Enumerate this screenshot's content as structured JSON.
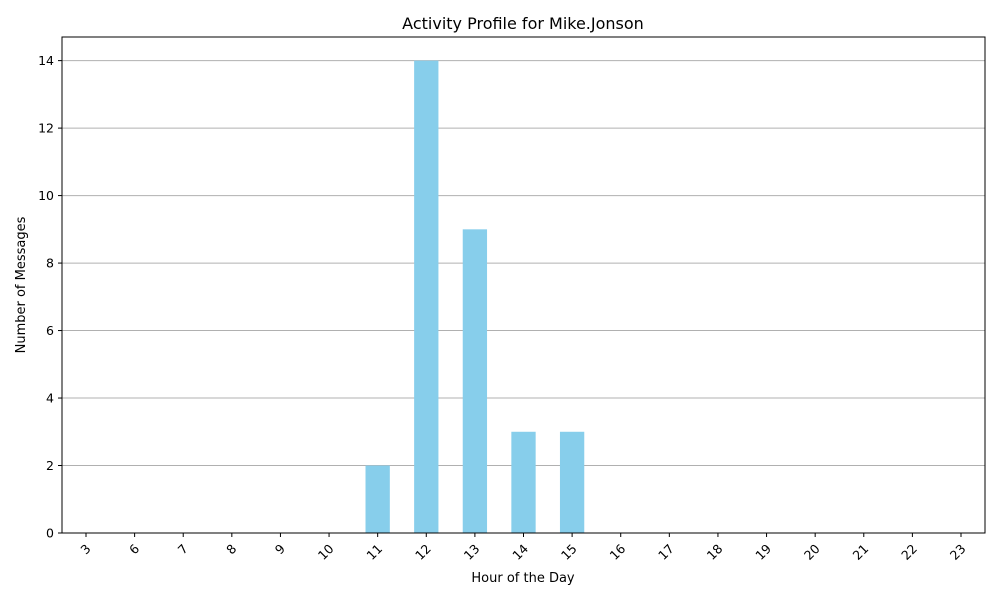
{
  "chart_data": {
    "type": "bar",
    "title": "Activity Profile for Mike.Jonson",
    "xlabel": "Hour of the Day",
    "ylabel": "Number of Messages",
    "categories": [
      "3",
      "6",
      "7",
      "8",
      "9",
      "10",
      "11",
      "12",
      "13",
      "14",
      "15",
      "16",
      "17",
      "18",
      "19",
      "20",
      "21",
      "22",
      "23"
    ],
    "values": [
      0,
      0,
      0,
      0,
      0,
      0,
      2,
      14,
      9,
      3,
      3,
      0,
      0,
      0,
      0,
      0,
      0,
      0,
      0
    ],
    "ylim": [
      0,
      14.7
    ],
    "yticks": [
      0,
      2,
      4,
      6,
      8,
      10,
      12,
      14
    ],
    "grid": "y",
    "bar_color": "#87ceeb",
    "grid_color": "#b0b0b0",
    "x_tick_rotation_deg": 45
  }
}
